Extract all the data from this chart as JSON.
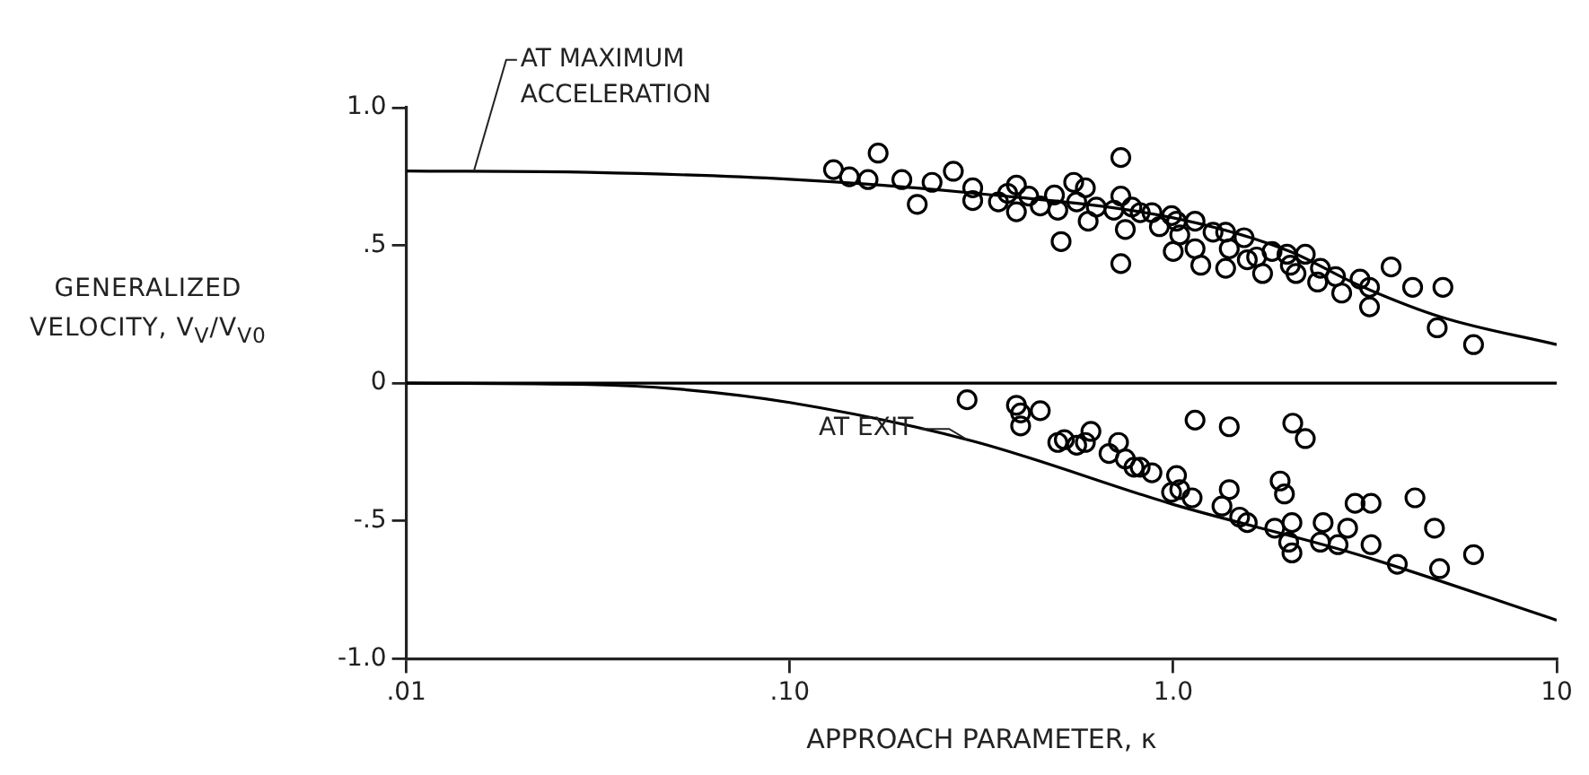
{
  "chart_data": {
    "type": "scatter",
    "xlabel": "APPROACH PARAMETER, κ",
    "ylabel": "GENERALIZED VELOCITY, V$_{V}$/V$_{V0}$",
    "log": "x",
    "xlim": [
      0.01,
      10
    ],
    "xticks": [
      {
        "value": 0.01,
        "label": ".01"
      },
      {
        "value": 0.1,
        "label": ".10"
      },
      {
        "value": 1,
        "label": "1.0"
      },
      {
        "value": 10,
        "label": "10"
      }
    ],
    "ylim": [
      -1,
      1
    ],
    "yticks": [
      {
        "value": -1,
        "label": "-1.0"
      },
      {
        "value": -0.5,
        "label": "-.5"
      },
      0,
      {
        "value": 0.5,
        "label": ".5"
      },
      {
        "value": 1,
        "label": "1.0"
      }
    ],
    "grid": false,
    "legend": false,
    "marker": "circle",
    "ref_lines": [
      {
        "axis": "y",
        "value": 0,
        "color": "#000000"
      }
    ],
    "annotations": [
      {
        "text": "AT MAXIMUM ACCELERATION",
        "x": 0.015,
        "y": 0.77
      },
      {
        "text": "AT EXIT",
        "x": 0.29,
        "y": -0.205
      }
    ],
    "series": [
      {
        "type": "line",
        "color": "#000000",
        "marker": "none",
        "x": [
          0.01,
          0.03,
          0.1,
          0.3,
          1,
          2,
          3,
          5,
          10
        ],
        "values": [
          0.77,
          0.765,
          0.74,
          0.69,
          0.6,
          0.48,
          0.36,
          0.24,
          0.14
        ]
      },
      {
        "type": "line",
        "color": "#000000",
        "marker": "none",
        "x": [
          0.01,
          0.03,
          0.05,
          0.1,
          0.3,
          1,
          3,
          10
        ],
        "values": [
          0,
          -0.005,
          -0.02,
          -0.07,
          -0.21,
          -0.44,
          -0.62,
          -0.86
        ]
      },
      {
        "type": "scatter",
        "color": "#000000",
        "x": [
          0.13,
          0.17,
          0.143,
          0.16,
          0.196,
          0.215,
          0.235,
          0.267,
          0.3,
          0.3,
          0.35,
          0.37,
          0.39,
          0.39,
          0.42,
          0.45,
          0.49,
          0.51,
          0.5,
          0.55,
          0.56,
          0.59,
          0.6,
          0.63,
          0.7,
          0.73,
          0.73,
          0.75,
          0.73,
          0.78,
          0.82,
          0.88,
          0.92,
          0.99,
          1.02,
          1.04,
          1.0,
          1.14,
          1.14,
          1.18,
          1.27,
          1.37,
          1.37,
          1.4,
          1.53,
          1.56,
          1.65,
          1.71,
          1.81,
          1.98,
          2.02,
          2.09,
          2.21,
          2.38,
          2.42,
          2.65,
          2.75,
          3.07,
          3.25,
          3.25,
          3.7,
          4.21,
          4.88,
          5.05,
          6.07
        ],
        "values": [
          0.775,
          0.835,
          0.749,
          0.739,
          0.739,
          0.649,
          0.729,
          0.769,
          0.709,
          0.663,
          0.658,
          0.689,
          0.719,
          0.622,
          0.679,
          0.643,
          0.683,
          0.514,
          0.628,
          0.729,
          0.658,
          0.709,
          0.588,
          0.639,
          0.628,
          0.819,
          0.679,
          0.558,
          0.434,
          0.639,
          0.619,
          0.619,
          0.568,
          0.608,
          0.588,
          0.538,
          0.478,
          0.588,
          0.488,
          0.428,
          0.548,
          0.548,
          0.417,
          0.488,
          0.528,
          0.448,
          0.458,
          0.398,
          0.478,
          0.468,
          0.428,
          0.398,
          0.468,
          0.367,
          0.417,
          0.387,
          0.327,
          0.378,
          0.348,
          0.277,
          0.422,
          0.348,
          0.201,
          0.348,
          0.14
        ]
      },
      {
        "type": "scatter",
        "color": "#000000",
        "x": [
          0.29,
          0.39,
          0.4,
          0.4,
          0.45,
          0.5,
          0.52,
          0.56,
          0.59,
          0.61,
          0.68,
          0.72,
          0.75,
          0.79,
          0.82,
          0.88,
          1.02,
          0.99,
          1.04,
          1.14,
          1.12,
          1.4,
          1.4,
          1.34,
          1.49,
          1.56,
          1.84,
          1.9,
          1.95,
          2.05,
          2.21,
          2.04,
          2.0,
          2.04,
          2.42,
          2.46,
          2.69,
          2.85,
          2.98,
          3.28,
          3.28,
          3.84,
          4.27,
          4.8,
          4.95,
          6.07
        ],
        "values": [
          -0.06,
          -0.08,
          -0.108,
          -0.155,
          -0.1,
          -0.215,
          -0.205,
          -0.225,
          -0.215,
          -0.175,
          -0.255,
          -0.215,
          -0.275,
          -0.305,
          -0.305,
          -0.325,
          -0.335,
          -0.396,
          -0.386,
          -0.134,
          -0.416,
          -0.158,
          -0.386,
          -0.446,
          -0.486,
          -0.506,
          -0.526,
          -0.355,
          -0.402,
          -0.145,
          -0.201,
          -0.506,
          -0.577,
          -0.616,
          -0.577,
          -0.506,
          -0.586,
          -0.526,
          -0.436,
          -0.436,
          -0.586,
          -0.657,
          -0.416,
          -0.526,
          -0.673,
          -0.622
        ]
      }
    ]
  }
}
